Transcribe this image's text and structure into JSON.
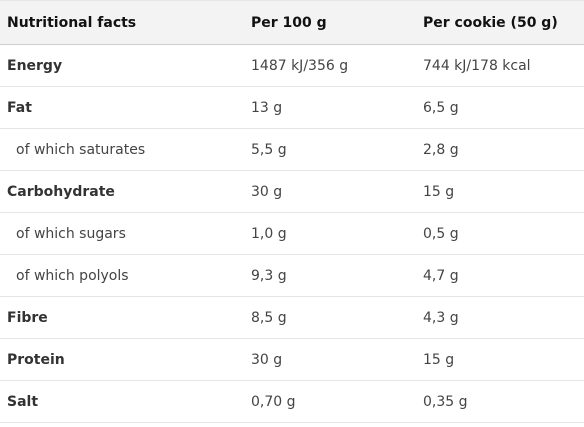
{
  "table": {
    "headers": [
      "Nutritional facts",
      "Per 100 g",
      "Per cookie (50 g)"
    ],
    "rows": [
      {
        "label": "Energy",
        "per100": "1487 kJ/356 g",
        "perCookie": "744 kJ/178 kcal",
        "style": "bold"
      },
      {
        "label": "Fat",
        "per100": "13 g",
        "perCookie": "6,5 g",
        "style": "bold"
      },
      {
        "label": "of which saturates",
        "per100": "5,5 g",
        "perCookie": "2,8 g",
        "style": "sub"
      },
      {
        "label": "Carbohydrate",
        "per100": "30 g",
        "perCookie": "15 g",
        "style": "bold"
      },
      {
        "label": "of which sugars",
        "per100": "1,0 g",
        "perCookie": "0,5 g",
        "style": "sub"
      },
      {
        "label": "of which polyols",
        "per100": "9,3 g",
        "perCookie": "4,7 g",
        "style": "sub"
      },
      {
        "label": "Fibre",
        "per100": "8,5 g",
        "perCookie": "4,3 g",
        "style": "bold"
      },
      {
        "label": "Protein",
        "per100": "30 g",
        "perCookie": "15 g",
        "style": "bold"
      },
      {
        "label": "Salt",
        "per100": "0,70 g",
        "perCookie": "0,35 g",
        "style": "bold"
      }
    ]
  }
}
